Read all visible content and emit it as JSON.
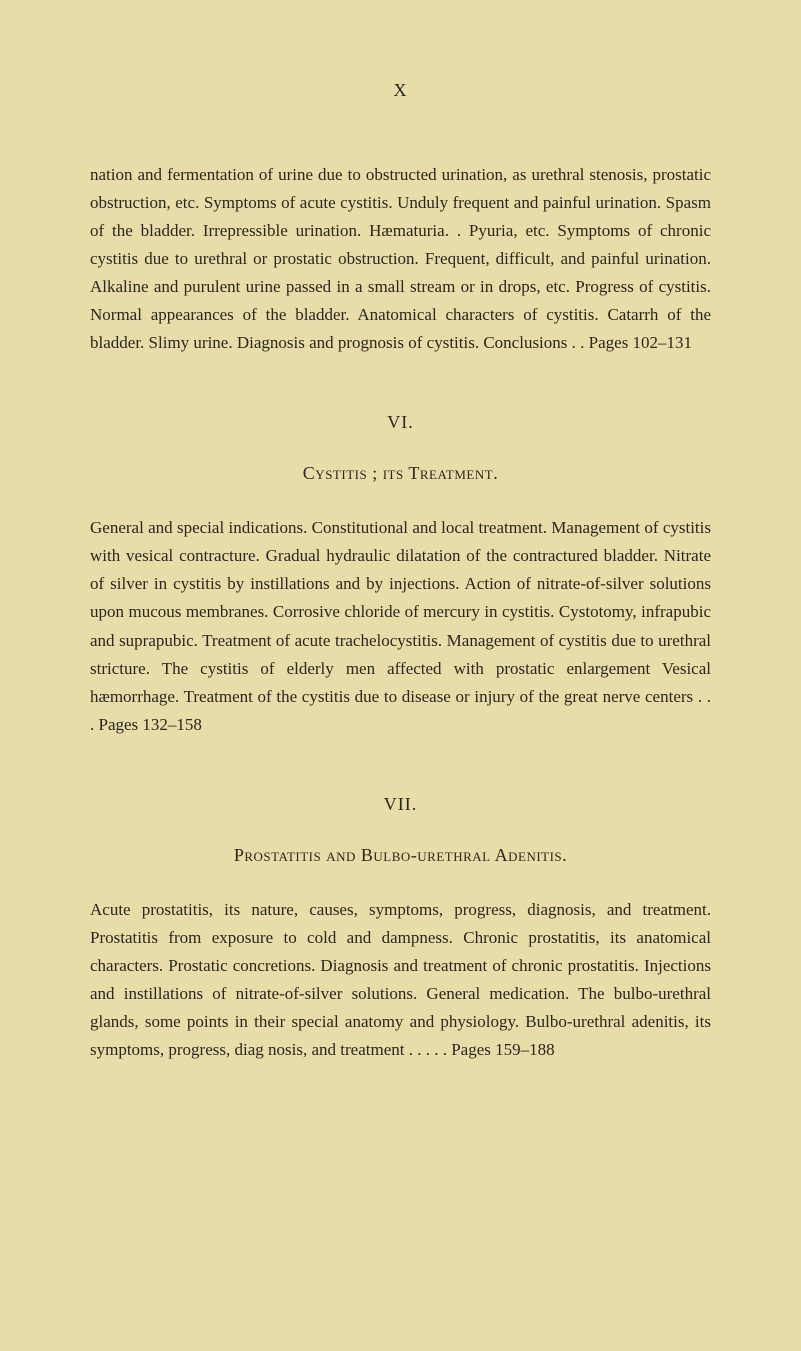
{
  "page_number": "X",
  "continuation_text": "nation and fermentation of urine due to obstructed urination, as urethral stenosis, prostatic obstruction, etc. Symptoms of acute cystitis. Unduly frequent and painful urination. Spasm of the bladder. Irrepressible urination. Hæmaturia. . Pyuria, etc. Symptoms of chronic cystitis due to urethral or prostatic obstruction. Frequent, difficult, and painful urination. Alkaline and purulent urine passed in a small stream or in drops, etc. Progress of cystitis. Normal appearances of the bladder. Anatomical characters of cystitis. Catarrh of the bladder. Slimy urine. Diagnosis and prognosis of cystitis. Conclusions   .   .      Pages 102–131",
  "section_vi": {
    "number": "VI.",
    "title": "Cystitis ; its Treatment.",
    "text": "General and special indications. Constitutional and local treatment. Management of cystitis with vesical contracture. Gradual hydraulic dilatation of the contractured bladder. Nitrate of silver in cystitis by instillations and by injections. Action of nitrate-of-silver solutions upon mucous membranes. Corrosive chloride of mercury in cystitis. Cystotomy, infrapubic and suprapubic. Treatment of acute trachelocystitis. Management of cystitis due to urethral stricture. The cystitis of elderly men affected with prostatic enlargement Vesical hæmorrhage. Treatment of the cystitis due to disease or injury of the great nerve centers    .    .    .       Pages 132–158"
  },
  "section_vii": {
    "number": "VII.",
    "title": "Prostatitis and Bulbo-urethral Adenitis.",
    "text": "Acute prostatitis, its nature, causes, symptoms, progress, diagnosis, and treatment. Prostatitis from exposure to cold and dampness. Chronic prostatitis, its anatomical characters. Prostatic concretions. Diagnosis and treatment of chronic prostatitis. Injections and instillations of nitrate-of-silver solutions. General medication. The bulbo-urethral glands, some points in their special anatomy and physiology. Bulbo-urethral adenitis, its symptoms, progress, diag nosis, and treatment     .    .    .    .    .       Pages 159–188"
  },
  "colors": {
    "background": "#e8dda8",
    "text": "#2a2620"
  },
  "typography": {
    "body_fontsize": 17,
    "heading_fontsize": 18,
    "line_height": 1.65,
    "font_family": "Times New Roman"
  }
}
